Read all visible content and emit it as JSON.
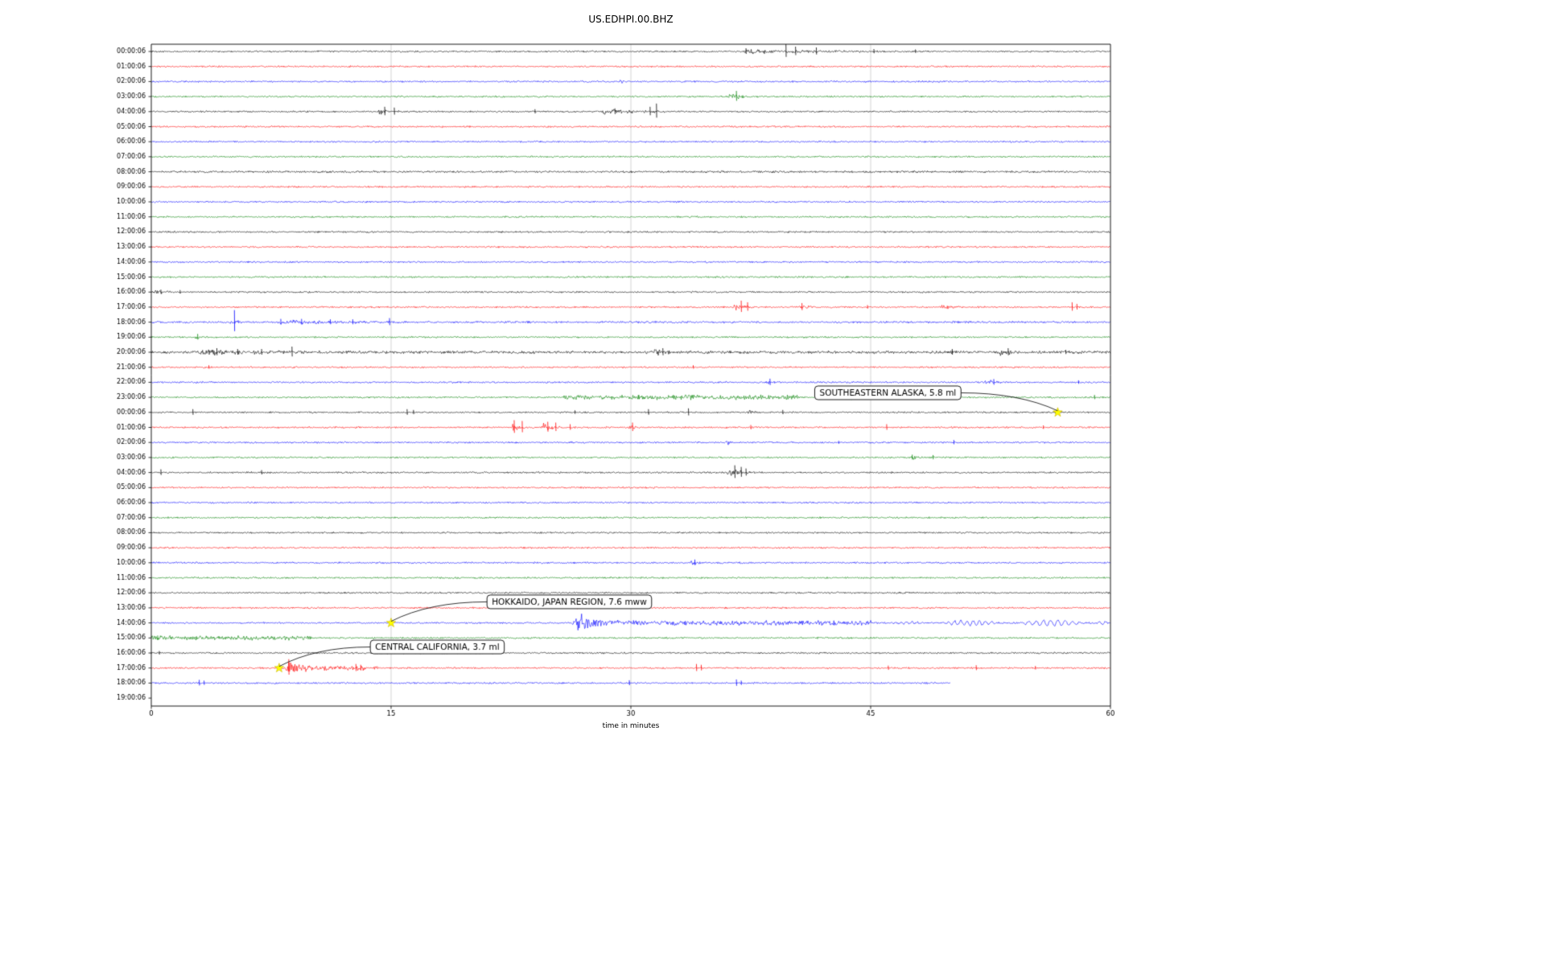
{
  "chart_data": {
    "type": "line",
    "title": "US.EDHPI.00.BHZ",
    "xlabel": "time in minutes",
    "xlim": [
      0,
      60
    ],
    "xticks": [
      0,
      15,
      30,
      45,
      60
    ],
    "grid": true,
    "grid_color": "#cccccc",
    "marker_color": "#ffff00",
    "trace_color_cycle": [
      "#000000",
      "#ff0000",
      "#0000ff",
      "#008000"
    ],
    "feature_legend": {
      "t": "type: b=burst q=quake s=spike n=noisy-interval w=wave-packet",
      "s": "start_min",
      "e": "end_min",
      "a": "amplitude_px",
      "x": "at_min",
      "f": "freq_cycles_per_min"
    },
    "rows": [
      {
        "label": "00:00:06",
        "f": [
          {
            "t": "b",
            "s": 36.5,
            "e": 46,
            "a": 2.5
          },
          {
            "t": "s",
            "x": 37.2,
            "a": 4
          },
          {
            "t": "s",
            "x": 39.7,
            "a": 9
          },
          {
            "t": "s",
            "x": 40.3,
            "a": 6
          },
          {
            "t": "s",
            "x": 41.6,
            "a": 5
          },
          {
            "t": "s",
            "x": 45.2,
            "a": 3
          },
          {
            "t": "s",
            "x": 47.8,
            "a": 2.5
          }
        ]
      },
      {
        "label": "01:00:06",
        "f": []
      },
      {
        "label": "02:00:06",
        "f": [
          {
            "t": "b",
            "s": 29.3,
            "e": 30,
            "a": 2.5
          }
        ]
      },
      {
        "label": "03:00:06",
        "f": [
          {
            "t": "b",
            "s": 36.1,
            "e": 37.6,
            "a": 6
          },
          {
            "t": "s",
            "x": 36.6,
            "a": 7
          }
        ]
      },
      {
        "label": "04:00:06",
        "f": [
          {
            "t": "b",
            "s": 14.1,
            "e": 15.6,
            "a": 3.5
          },
          {
            "t": "s",
            "x": 14.6,
            "a": 6
          },
          {
            "t": "s",
            "x": 15.2,
            "a": 5
          },
          {
            "t": "b",
            "s": 27.8,
            "e": 33.2,
            "a": 3
          },
          {
            "t": "s",
            "x": 24,
            "a": 3
          },
          {
            "t": "s",
            "x": 29,
            "a": 4
          },
          {
            "t": "s",
            "x": 31.2,
            "a": 6
          },
          {
            "t": "s",
            "x": 31.6,
            "a": 10
          }
        ]
      },
      {
        "label": "05:00:06",
        "f": []
      },
      {
        "label": "06:00:06",
        "f": []
      },
      {
        "label": "07:00:06",
        "f": []
      },
      {
        "label": "08:00:06",
        "noise": 1.5,
        "f": []
      },
      {
        "label": "09:00:06",
        "f": []
      },
      {
        "label": "10:00:06",
        "f": []
      },
      {
        "label": "11:00:06",
        "f": []
      },
      {
        "label": "12:00:06",
        "f": []
      },
      {
        "label": "13:00:06",
        "f": []
      },
      {
        "label": "14:00:06",
        "f": []
      },
      {
        "label": "15:00:06",
        "f": []
      },
      {
        "label": "16:00:06",
        "f": [
          {
            "t": "b",
            "s": 0,
            "e": 2.5,
            "a": 1.5
          },
          {
            "t": "s",
            "x": 0.6,
            "a": 3
          },
          {
            "t": "s",
            "x": 1.8,
            "a": 2.5
          }
        ]
      },
      {
        "label": "17:00:06",
        "f": [
          {
            "t": "b",
            "s": 36.4,
            "e": 37.6,
            "a": 5
          },
          {
            "t": "s",
            "x": 36.9,
            "a": 8
          },
          {
            "t": "s",
            "x": 37.3,
            "a": 6
          },
          {
            "t": "b",
            "s": 40.4,
            "e": 41.6,
            "a": 3
          },
          {
            "t": "s",
            "x": 40.7,
            "a": 5
          },
          {
            "t": "s",
            "x": 44.8,
            "a": 2.5
          },
          {
            "t": "b",
            "s": 49.3,
            "e": 50.6,
            "a": 3
          },
          {
            "t": "s",
            "x": 57.6,
            "a": 6
          },
          {
            "t": "s",
            "x": 57.9,
            "a": 4
          }
        ]
      },
      {
        "label": "18:00:06",
        "noise": 1.5,
        "f": [
          {
            "t": "s",
            "x": 5.2,
            "a": 15
          },
          {
            "t": "b",
            "s": 4.9,
            "e": 5.6,
            "a": 6
          },
          {
            "t": "b",
            "s": 7.4,
            "e": 15.8,
            "a": 2.5
          },
          {
            "t": "s",
            "x": 8.1,
            "a": 4
          },
          {
            "t": "s",
            "x": 9.4,
            "a": 4
          },
          {
            "t": "s",
            "x": 11.2,
            "a": 3.5
          },
          {
            "t": "s",
            "x": 12.6,
            "a": 3.5
          },
          {
            "t": "s",
            "x": 14.9,
            "a": 5
          }
        ]
      },
      {
        "label": "19:00:06",
        "f": [
          {
            "t": "s",
            "x": 2.9,
            "a": 4
          },
          {
            "t": "b",
            "s": 2.7,
            "e": 3.3,
            "a": 2
          }
        ]
      },
      {
        "label": "20:00:06",
        "noise": 2,
        "f": [
          {
            "t": "b",
            "s": 2.8,
            "e": 9.2,
            "a": 3
          },
          {
            "t": "s",
            "x": 4.1,
            "a": 5
          },
          {
            "t": "s",
            "x": 5.4,
            "a": 4
          },
          {
            "t": "s",
            "x": 6.9,
            "a": 4
          },
          {
            "t": "s",
            "x": 8.8,
            "a": 7
          },
          {
            "t": "b",
            "s": 31.4,
            "e": 32.6,
            "a": 4
          },
          {
            "t": "s",
            "x": 32,
            "a": 5
          },
          {
            "t": "s",
            "x": 50.1,
            "a": 4
          },
          {
            "t": "b",
            "s": 52.9,
            "e": 54.6,
            "a": 4
          },
          {
            "t": "s",
            "x": 53.6,
            "a": 5
          },
          {
            "t": "s",
            "x": 57.2,
            "a": 3
          }
        ]
      },
      {
        "label": "21:00:06",
        "f": [
          {
            "t": "s",
            "x": 3.6,
            "a": 2.5
          },
          {
            "t": "s",
            "x": 33.9,
            "a": 2.5
          }
        ]
      },
      {
        "label": "22:00:06",
        "f": [
          {
            "t": "b",
            "s": 38.4,
            "e": 39,
            "a": 2.5
          },
          {
            "t": "s",
            "x": 38.7,
            "a": 4.5
          },
          {
            "t": "b",
            "s": 52.1,
            "e": 53.6,
            "a": 3
          },
          {
            "t": "s",
            "x": 52.7,
            "a": 4
          },
          {
            "t": "s",
            "x": 58,
            "a": 2.5
          }
        ]
      },
      {
        "label": "23:00:06",
        "f": [
          {
            "t": "n",
            "s": 25.8,
            "e": 40.5,
            "a": 2.2
          },
          {
            "t": "b",
            "s": 38.3,
            "e": 39.6,
            "a": 3
          },
          {
            "t": "s",
            "x": 30.5,
            "a": 3
          },
          {
            "t": "n",
            "s": 42.8,
            "e": 44.3,
            "a": 2
          },
          {
            "t": "s",
            "x": 59,
            "a": 3
          }
        ]
      },
      {
        "label": "00:00:06",
        "f": [
          {
            "t": "s",
            "x": 2.6,
            "a": 4
          },
          {
            "t": "s",
            "x": 16,
            "a": 4
          },
          {
            "t": "s",
            "x": 16.4,
            "a": 3
          },
          {
            "t": "s",
            "x": 26.5,
            "a": 2.5
          },
          {
            "t": "s",
            "x": 31.1,
            "a": 4
          },
          {
            "t": "s",
            "x": 33.6,
            "a": 5
          },
          {
            "t": "b",
            "s": 37.2,
            "e": 38.1,
            "a": 4
          },
          {
            "t": "s",
            "x": 39.5,
            "a": 3
          }
        ]
      },
      {
        "label": "01:00:06",
        "f": [
          {
            "t": "b",
            "s": 22.4,
            "e": 23.6,
            "a": 6
          },
          {
            "t": "s",
            "x": 22.7,
            "a": 9
          },
          {
            "t": "s",
            "x": 23.2,
            "a": 8
          },
          {
            "t": "b",
            "s": 24.4,
            "e": 25.7,
            "a": 5
          },
          {
            "t": "s",
            "x": 24.8,
            "a": 7
          },
          {
            "t": "s",
            "x": 25.3,
            "a": 6
          },
          {
            "t": "s",
            "x": 26.2,
            "a": 4
          },
          {
            "t": "b",
            "s": 29.8,
            "e": 30.6,
            "a": 4
          },
          {
            "t": "s",
            "x": 30.1,
            "a": 6
          },
          {
            "t": "s",
            "x": 37.5,
            "a": 3
          },
          {
            "t": "s",
            "x": 46,
            "a": 4
          },
          {
            "t": "s",
            "x": 55.8,
            "a": 2.5
          }
        ]
      },
      {
        "label": "02:00:06",
        "f": [
          {
            "t": "b",
            "s": 35.9,
            "e": 36.6,
            "a": 3.5
          },
          {
            "t": "s",
            "x": 43,
            "a": 2
          },
          {
            "t": "s",
            "x": 50.2,
            "a": 3
          }
        ]
      },
      {
        "label": "03:00:06",
        "f": [
          {
            "t": "b",
            "s": 47.4,
            "e": 49.2,
            "a": 2
          },
          {
            "t": "s",
            "x": 47.6,
            "a": 3.5
          },
          {
            "t": "s",
            "x": 48.9,
            "a": 3
          }
        ]
      },
      {
        "label": "04:00:06",
        "f": [
          {
            "t": "s",
            "x": 0.6,
            "a": 4
          },
          {
            "t": "s",
            "x": 6.9,
            "a": 3
          },
          {
            "t": "b",
            "s": 36,
            "e": 37.6,
            "a": 6
          },
          {
            "t": "s",
            "x": 36.5,
            "a": 9
          },
          {
            "t": "s",
            "x": 36.9,
            "a": 7
          },
          {
            "t": "s",
            "x": 37.2,
            "a": 5
          }
        ]
      },
      {
        "label": "05:00:06",
        "f": []
      },
      {
        "label": "06:00:06",
        "f": []
      },
      {
        "label": "07:00:06",
        "f": []
      },
      {
        "label": "08:00:06",
        "f": []
      },
      {
        "label": "09:00:06",
        "f": []
      },
      {
        "label": "10:00:06",
        "f": [
          {
            "t": "b",
            "s": 33.7,
            "e": 34.4,
            "a": 4
          },
          {
            "t": "s",
            "x": 34,
            "a": 4
          }
        ]
      },
      {
        "label": "11:00:06",
        "f": []
      },
      {
        "label": "12:00:06",
        "f": []
      },
      {
        "label": "13:00:06",
        "f": []
      },
      {
        "label": "14:00:06",
        "f": [
          {
            "t": "q",
            "s": 26.3,
            "e": 29.6,
            "a": 12
          },
          {
            "t": "n",
            "s": 29.6,
            "e": 45,
            "a": 2.2
          },
          {
            "t": "w",
            "s": 46,
            "e": 48.5,
            "a": 1.5,
            "f": 3
          },
          {
            "t": "w",
            "s": 49.2,
            "e": 53.2,
            "a": 3,
            "f": 2.6
          },
          {
            "t": "w",
            "s": 54.1,
            "e": 58.6,
            "a": 3.5,
            "f": 2.2
          },
          {
            "t": "w",
            "s": 59,
            "e": 60,
            "a": 2,
            "f": 2.5
          }
        ]
      },
      {
        "label": "15:00:06",
        "f": [
          {
            "t": "n",
            "s": 0,
            "e": 10,
            "a": 1.9
          },
          {
            "t": "s",
            "x": 0.4,
            "a": 3
          }
        ]
      },
      {
        "label": "16:00:06",
        "f": [
          {
            "t": "s",
            "x": 0.5,
            "a": 2.5
          }
        ]
      },
      {
        "label": "17:00:06",
        "f": [
          {
            "t": "q",
            "s": 8.3,
            "e": 10.8,
            "a": 9
          },
          {
            "t": "s",
            "x": 8.6,
            "a": 11
          },
          {
            "t": "n",
            "s": 10.8,
            "e": 13.5,
            "a": 2.5
          },
          {
            "t": "s",
            "x": 12.8,
            "a": 5
          },
          {
            "t": "s",
            "x": 13.1,
            "a": 4
          },
          {
            "t": "b",
            "s": 13.9,
            "e": 14.3,
            "a": 3
          },
          {
            "t": "s",
            "x": 34.1,
            "a": 5
          },
          {
            "t": "s",
            "x": 34.4,
            "a": 4
          },
          {
            "t": "s",
            "x": 46.1,
            "a": 3
          },
          {
            "t": "s",
            "x": 51.6,
            "a": 3.5
          },
          {
            "t": "s",
            "x": 55.3,
            "a": 2.5
          }
        ]
      },
      {
        "label": "18:00:06",
        "end": 50,
        "f": [
          {
            "t": "s",
            "x": 3,
            "a": 4
          },
          {
            "t": "s",
            "x": 3.3,
            "a": 3
          },
          {
            "t": "s",
            "x": 29.9,
            "a": 3.5
          },
          {
            "t": "s",
            "x": 36.6,
            "a": 4.5
          },
          {
            "t": "s",
            "x": 36.9,
            "a": 3
          }
        ]
      },
      {
        "label": "19:00:06",
        "end": 0,
        "f": []
      }
    ],
    "annotations": [
      {
        "text": "SOUTHEASTERN ALASKA, 5.8 ml",
        "star": {
          "row": 24,
          "min": 56.7
        },
        "box": {
          "min": 41.5,
          "row": 22.7
        },
        "side": "right"
      },
      {
        "text": "HOKKAIDO, JAPAN REGION, 7.6 mww",
        "star": {
          "row": 38,
          "min": 15
        },
        "box": {
          "min": 21,
          "row": 36.6
        },
        "side": "left"
      },
      {
        "text": "CENTRAL CALIFORNIA, 3.7 ml",
        "star": {
          "row": 41,
          "min": 8
        },
        "box": {
          "min": 13.7,
          "row": 39.6
        },
        "side": "left"
      }
    ]
  }
}
